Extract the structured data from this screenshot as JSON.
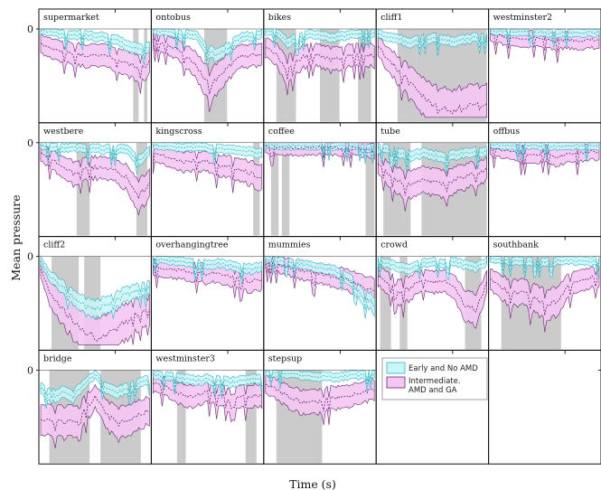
{
  "chart_data": {
    "type": "area",
    "xlabel": "Time (s)",
    "ylabel": "Mean pressure",
    "ytick_label": "0",
    "grid": false,
    "legend_placement": "in-cell-row4-col4",
    "legend": [
      {
        "label": "Early and No AMD",
        "fill": "#c9f6f8",
        "line": "#2bb6c4"
      },
      {
        "label": "Intermediate. AMD and GA",
        "fill": "#f4c6f2",
        "line": "#6a2374"
      }
    ],
    "colors": {
      "early_fill": "#c9f6f8",
      "early_line": "#2bb6c4",
      "inter_fill": "#f4c6f2",
      "inter_line": "#6a2374",
      "shade": "#cbcbcb"
    },
    "x": [
      0,
      0.1,
      0.2,
      0.3,
      0.4,
      0.5,
      0.6,
      0.7,
      0.8,
      0.9,
      1.0
    ],
    "panels": [
      {
        "title": "supermarket",
        "shade": [
          [
            0.85,
            0.9
          ],
          [
            0.95,
            0.98
          ]
        ],
        "early": [
          0.02,
          0.04,
          0.06,
          0.07,
          0.06,
          0.08,
          0.1,
          0.12,
          0.18,
          0.25,
          0.2
        ],
        "inter": [
          0.18,
          0.22,
          0.25,
          0.28,
          0.3,
          0.28,
          0.3,
          0.34,
          0.4,
          0.45,
          0.38
        ]
      },
      {
        "title": "ontobus",
        "shade": [
          [
            0.47,
            0.68
          ]
        ],
        "early": [
          0.02,
          0.03,
          0.05,
          0.06,
          0.08,
          0.25,
          0.3,
          0.2,
          0.1,
          0.08,
          0.06
        ],
        "inter": [
          0.12,
          0.16,
          0.22,
          0.3,
          0.42,
          0.6,
          0.55,
          0.42,
          0.32,
          0.3,
          0.3
        ]
      },
      {
        "title": "bikes",
        "shade": [
          [
            0.1,
            0.28
          ],
          [
            0.5,
            0.68
          ],
          [
            0.85,
            0.97
          ]
        ],
        "early": [
          0.02,
          0.04,
          0.15,
          0.1,
          0.05,
          0.07,
          0.1,
          0.08,
          0.06,
          0.05,
          0.05
        ],
        "inter": [
          0.2,
          0.28,
          0.48,
          0.35,
          0.28,
          0.3,
          0.35,
          0.32,
          0.3,
          0.28,
          0.3
        ]
      },
      {
        "title": "cliff1",
        "shade": [
          [
            0.18,
            0.35
          ],
          [
            0.35,
            1.0
          ]
        ],
        "early": [
          0.05,
          0.1,
          0.12,
          0.15,
          0.12,
          0.1,
          0.12,
          0.15,
          0.12,
          0.1,
          0.12
        ],
        "inter": [
          0.2,
          0.35,
          0.48,
          0.62,
          0.75,
          0.85,
          0.9,
          0.92,
          0.9,
          0.88,
          0.88
        ]
      },
      {
        "title": "westminster2",
        "shade": [],
        "early": [
          0.02,
          0.03,
          0.03,
          0.04,
          0.03,
          0.04,
          0.05,
          0.04,
          0.05,
          0.04,
          0.04
        ],
        "inter": [
          0.05,
          0.08,
          0.1,
          0.12,
          0.1,
          0.12,
          0.14,
          0.12,
          0.14,
          0.12,
          0.12
        ]
      },
      {
        "title": "westbere",
        "shade": [
          [
            0.33,
            0.45
          ],
          [
            0.88,
            0.98
          ]
        ],
        "early": [
          0.03,
          0.05,
          0.06,
          0.05,
          0.07,
          0.06,
          0.08,
          0.07,
          0.08,
          0.2,
          0.1
        ],
        "inter": [
          0.12,
          0.18,
          0.28,
          0.35,
          0.3,
          0.28,
          0.3,
          0.32,
          0.4,
          0.6,
          0.45
        ]
      },
      {
        "title": "kingscross",
        "shade": [
          [
            0.92,
            0.98
          ]
        ],
        "early": [
          0.03,
          0.04,
          0.05,
          0.06,
          0.05,
          0.06,
          0.07,
          0.08,
          0.08,
          0.1,
          0.12
        ],
        "inter": [
          0.12,
          0.15,
          0.2,
          0.22,
          0.2,
          0.22,
          0.25,
          0.28,
          0.3,
          0.35,
          0.4
        ]
      },
      {
        "title": "coffee",
        "shade": [
          [
            0.05,
            0.12
          ],
          [
            0.15,
            0.22
          ],
          [
            0.92,
            1.0
          ]
        ],
        "early": [
          0.02,
          0.03,
          0.04,
          0.03,
          0.04,
          0.03,
          0.04,
          0.03,
          0.04,
          0.05,
          0.06
        ],
        "inter": [
          0.04,
          0.05,
          0.06,
          0.06,
          0.06,
          0.05,
          0.06,
          0.06,
          0.06,
          0.07,
          0.1
        ]
      },
      {
        "title": "tube",
        "shade": [
          [
            0.05,
            0.3
          ],
          [
            0.4,
            1.0
          ]
        ],
        "early": [
          0.05,
          0.08,
          0.12,
          0.15,
          0.12,
          0.14,
          0.16,
          0.14,
          0.12,
          0.1,
          0.1
        ],
        "inter": [
          0.22,
          0.35,
          0.45,
          0.48,
          0.42,
          0.45,
          0.48,
          0.42,
          0.38,
          0.35,
          0.3
        ]
      },
      {
        "title": "offbus",
        "shade": [],
        "early": [
          0.02,
          0.03,
          0.03,
          0.03,
          0.03,
          0.04,
          0.04,
          0.04,
          0.03,
          0.04,
          0.04
        ],
        "inter": [
          0.06,
          0.08,
          0.1,
          0.12,
          0.14,
          0.12,
          0.16,
          0.14,
          0.12,
          0.1,
          0.1
        ]
      },
      {
        "title": "cliff2",
        "shade": [
          [
            0.1,
            0.35
          ],
          [
            0.4,
            0.55
          ]
        ],
        "early": [
          0.05,
          0.25,
          0.35,
          0.45,
          0.55,
          0.6,
          0.55,
          0.5,
          0.42,
          0.4,
          0.35
        ],
        "inter": [
          0.15,
          0.45,
          0.6,
          0.72,
          0.85,
          0.92,
          0.88,
          0.82,
          0.72,
          0.65,
          0.58
        ]
      },
      {
        "title": "overhangingtree",
        "shade": [],
        "early": [
          0.03,
          0.04,
          0.05,
          0.06,
          0.08,
          0.1,
          0.08,
          0.1,
          0.12,
          0.14,
          0.12
        ],
        "inter": [
          0.12,
          0.14,
          0.15,
          0.16,
          0.18,
          0.2,
          0.18,
          0.22,
          0.25,
          0.28,
          0.26
        ]
      },
      {
        "title": "mummies",
        "shade": [],
        "early": [
          0.03,
          0.05,
          0.06,
          0.08,
          0.1,
          0.12,
          0.15,
          0.2,
          0.3,
          0.45,
          0.55
        ],
        "inter": [
          0.05,
          0.08,
          0.12,
          0.15,
          0.18,
          0.2,
          0.22,
          0.25,
          0.3,
          0.35,
          0.4
        ]
      },
      {
        "title": "crowd",
        "shade": [
          [
            0.02,
            0.12
          ],
          [
            0.2,
            0.27
          ],
          [
            0.8,
            0.95
          ]
        ],
        "early": [
          0.05,
          0.08,
          0.12,
          0.15,
          0.08,
          0.06,
          0.08,
          0.06,
          0.1,
          0.12,
          0.06
        ],
        "inter": [
          0.22,
          0.3,
          0.42,
          0.35,
          0.25,
          0.3,
          0.28,
          0.35,
          0.55,
          0.62,
          0.3
        ]
      },
      {
        "title": "southbank",
        "shade": [
          [
            0.1,
            0.65
          ]
        ],
        "early": [
          0.03,
          0.04,
          0.05,
          0.06,
          0.05,
          0.06,
          0.05,
          0.04,
          0.05,
          0.06,
          0.05
        ],
        "inter": [
          0.25,
          0.35,
          0.42,
          0.4,
          0.48,
          0.55,
          0.52,
          0.35,
          0.28,
          0.25,
          0.22
        ]
      },
      {
        "title": "bridge",
        "shade": [
          [
            0.08,
            0.45
          ],
          [
            0.55,
            0.92
          ]
        ],
        "early": [
          0.2,
          0.3,
          0.25,
          0.3,
          0.15,
          0.05,
          0.2,
          0.25,
          0.2,
          0.15,
          0.1
        ],
        "inter": [
          0.55,
          0.6,
          0.58,
          0.6,
          0.45,
          0.3,
          0.5,
          0.6,
          0.58,
          0.5,
          0.45
        ]
      },
      {
        "title": "westminster3",
        "shade": [
          [
            0.22,
            0.3
          ],
          [
            0.85,
            0.95
          ]
        ],
        "early": [
          0.05,
          0.06,
          0.08,
          0.1,
          0.12,
          0.1,
          0.12,
          0.14,
          0.12,
          0.1,
          0.1
        ],
        "inter": [
          0.15,
          0.18,
          0.25,
          0.3,
          0.28,
          0.25,
          0.28,
          0.32,
          0.3,
          0.28,
          0.3
        ]
      },
      {
        "title": "stepsup",
        "shade": [
          [
            0.1,
            0.52
          ]
        ],
        "early": [
          0.02,
          0.03,
          0.04,
          0.05,
          0.06,
          0.07,
          0.08,
          0.07,
          0.06,
          0.05,
          0.05
        ],
        "inter": [
          0.15,
          0.22,
          0.3,
          0.35,
          0.38,
          0.35,
          0.32,
          0.3,
          0.28,
          0.25,
          0.22
        ]
      }
    ]
  }
}
